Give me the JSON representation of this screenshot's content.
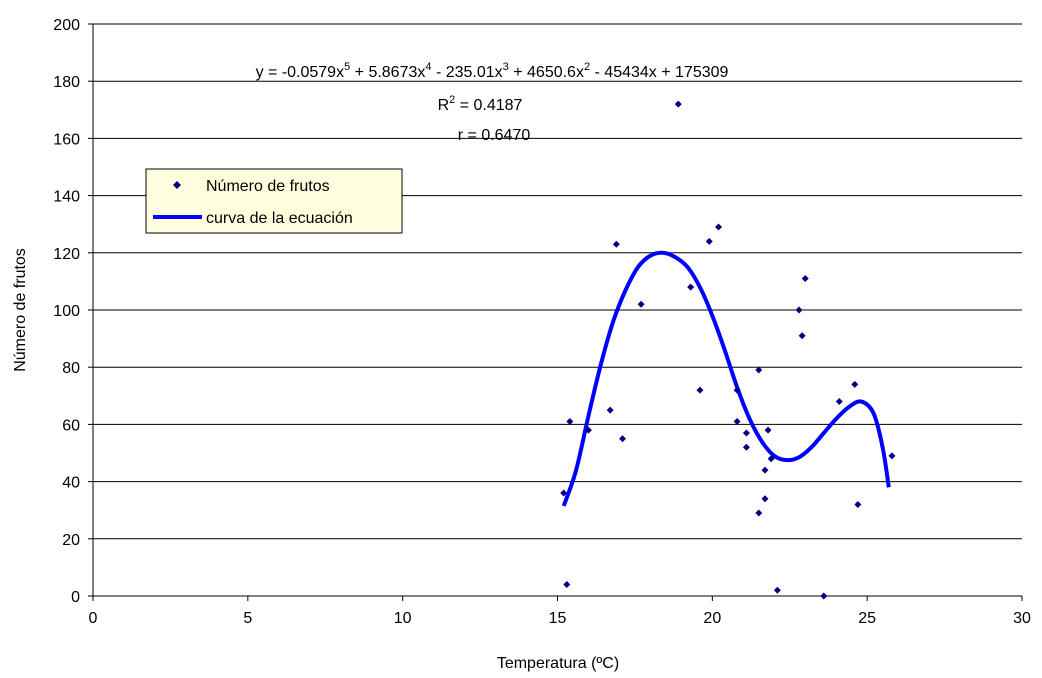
{
  "chart_data": {
    "type": "scatter",
    "xlabel": "Temperatura (ºC)",
    "ylabel": "Número de frutos",
    "xlim": [
      0,
      30
    ],
    "ylim": [
      0,
      200
    ],
    "xticks": [
      0,
      5,
      10,
      15,
      20,
      25,
      30
    ],
    "yticks": [
      0,
      20,
      40,
      60,
      80,
      100,
      120,
      140,
      160,
      180,
      200
    ],
    "grid": "horizontal",
    "legend": "left",
    "series": [
      {
        "name": "Número de frutos",
        "kind": "points",
        "color": "#000080",
        "marker": "diamond",
        "points": [
          [
            15.2,
            36
          ],
          [
            15.4,
            61
          ],
          [
            15.3,
            4
          ],
          [
            16.0,
            58
          ],
          [
            16.7,
            65
          ],
          [
            17.1,
            55
          ],
          [
            16.9,
            123
          ],
          [
            17.7,
            102
          ],
          [
            18.9,
            172
          ],
          [
            19.3,
            108
          ],
          [
            19.6,
            72
          ],
          [
            19.9,
            124
          ],
          [
            20.2,
            129
          ],
          [
            20.8,
            72
          ],
          [
            20.8,
            61
          ],
          [
            21.1,
            57
          ],
          [
            21.1,
            52
          ],
          [
            21.5,
            79
          ],
          [
            21.5,
            29
          ],
          [
            21.7,
            34
          ],
          [
            21.7,
            44
          ],
          [
            21.8,
            58
          ],
          [
            21.9,
            48
          ],
          [
            22.1,
            2
          ],
          [
            22.8,
            100
          ],
          [
            22.9,
            91
          ],
          [
            23.0,
            111
          ],
          [
            23.6,
            0
          ],
          [
            24.1,
            68
          ],
          [
            24.6,
            74
          ],
          [
            24.7,
            32
          ],
          [
            25.8,
            49
          ]
        ]
      },
      {
        "name": "curva de la ecuación",
        "kind": "curve",
        "color": "#0000FF",
        "points": [
          [
            15.2,
            31.5
          ],
          [
            15.6,
            44
          ],
          [
            16.0,
            63
          ],
          [
            16.4,
            81
          ],
          [
            16.8,
            96
          ],
          [
            17.2,
            107
          ],
          [
            17.6,
            115
          ],
          [
            18.0,
            119
          ],
          [
            18.4,
            120
          ],
          [
            18.8,
            118.5
          ],
          [
            19.2,
            115
          ],
          [
            19.6,
            108
          ],
          [
            20.0,
            98
          ],
          [
            20.4,
            86
          ],
          [
            20.8,
            73
          ],
          [
            21.2,
            62
          ],
          [
            21.6,
            54
          ],
          [
            22.0,
            49
          ],
          [
            22.4,
            47.5
          ],
          [
            22.8,
            48.5
          ],
          [
            23.2,
            52
          ],
          [
            23.6,
            57
          ],
          [
            24.0,
            62
          ],
          [
            24.4,
            66
          ],
          [
            24.8,
            68
          ],
          [
            25.2,
            64
          ],
          [
            25.5,
            52
          ],
          [
            25.7,
            38
          ]
        ]
      }
    ],
    "annotations": {
      "equation": {
        "parts": [
          {
            "t": "y = -0.0579x",
            "sup": false
          },
          {
            "t": "5",
            "sup": true
          },
          {
            "t": " + 5.8673x",
            "sup": false
          },
          {
            "t": "4",
            "sup": true
          },
          {
            "t": " - 235.01x",
            "sup": false
          },
          {
            "t": "3",
            "sup": true
          },
          {
            "t": " + 4650.6x",
            "sup": false
          },
          {
            "t": "2",
            "sup": true
          },
          {
            "t": " - 45434x + 175309",
            "sup": false
          }
        ]
      },
      "r2": {
        "parts": [
          {
            "t": "R",
            "sup": false
          },
          {
            "t": "2",
            "sup": true
          },
          {
            "t": " = 0.4187",
            "sup": false
          }
        ]
      },
      "r": "r = 0.6470"
    }
  }
}
